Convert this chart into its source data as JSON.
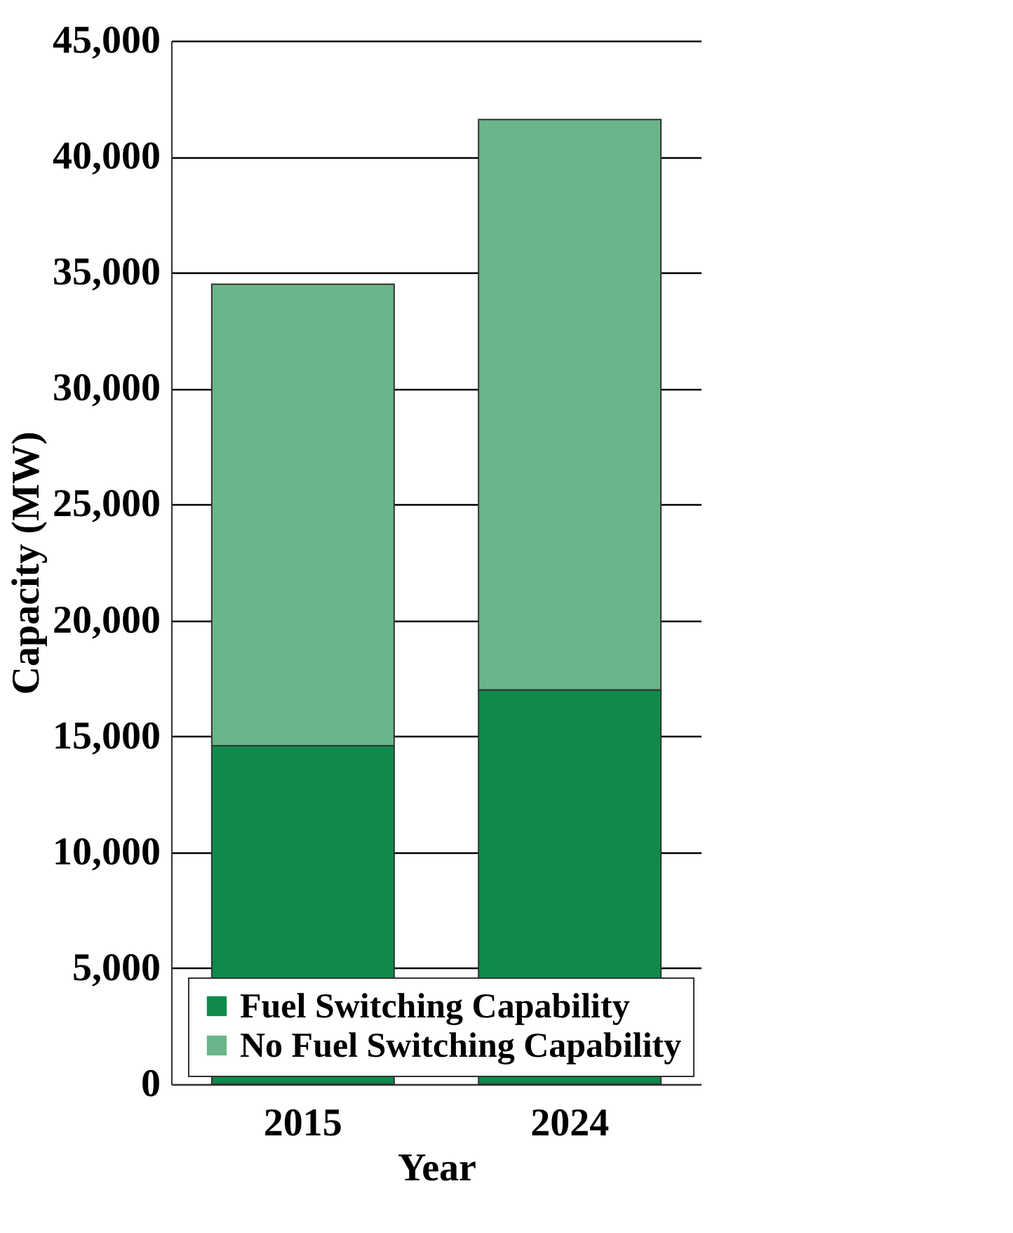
{
  "chart_data": {
    "type": "bar",
    "stacked": true,
    "xlabel": "Year",
    "ylabel": "Capacity (MW)",
    "categories": [
      "2015",
      "2024"
    ],
    "series": [
      {
        "name": "Fuel Switching Capability",
        "color": "#0f8a4c",
        "values": [
          14600,
          17000
        ]
      },
      {
        "name": "No Fuel Switching Capability",
        "color": "#6bb58a",
        "values": [
          19900,
          24600
        ]
      }
    ],
    "ylim": [
      0,
      45000
    ],
    "yticks": [
      0,
      {
        "value": 5000,
        "label": "5,000"
      },
      {
        "value": 10000,
        "label": "10,000"
      },
      {
        "value": 15000,
        "label": "15,000"
      },
      {
        "value": 20000,
        "label": "20,000"
      },
      {
        "value": 25000,
        "label": "25,000"
      },
      {
        "value": 30000,
        "label": "30,000"
      },
      {
        "value": 35000,
        "label": "35,000"
      },
      {
        "value": 40000,
        "label": "40,000"
      },
      {
        "value": 45000,
        "label": "45,000"
      }
    ],
    "grid": "y",
    "legend": "bottom right"
  }
}
